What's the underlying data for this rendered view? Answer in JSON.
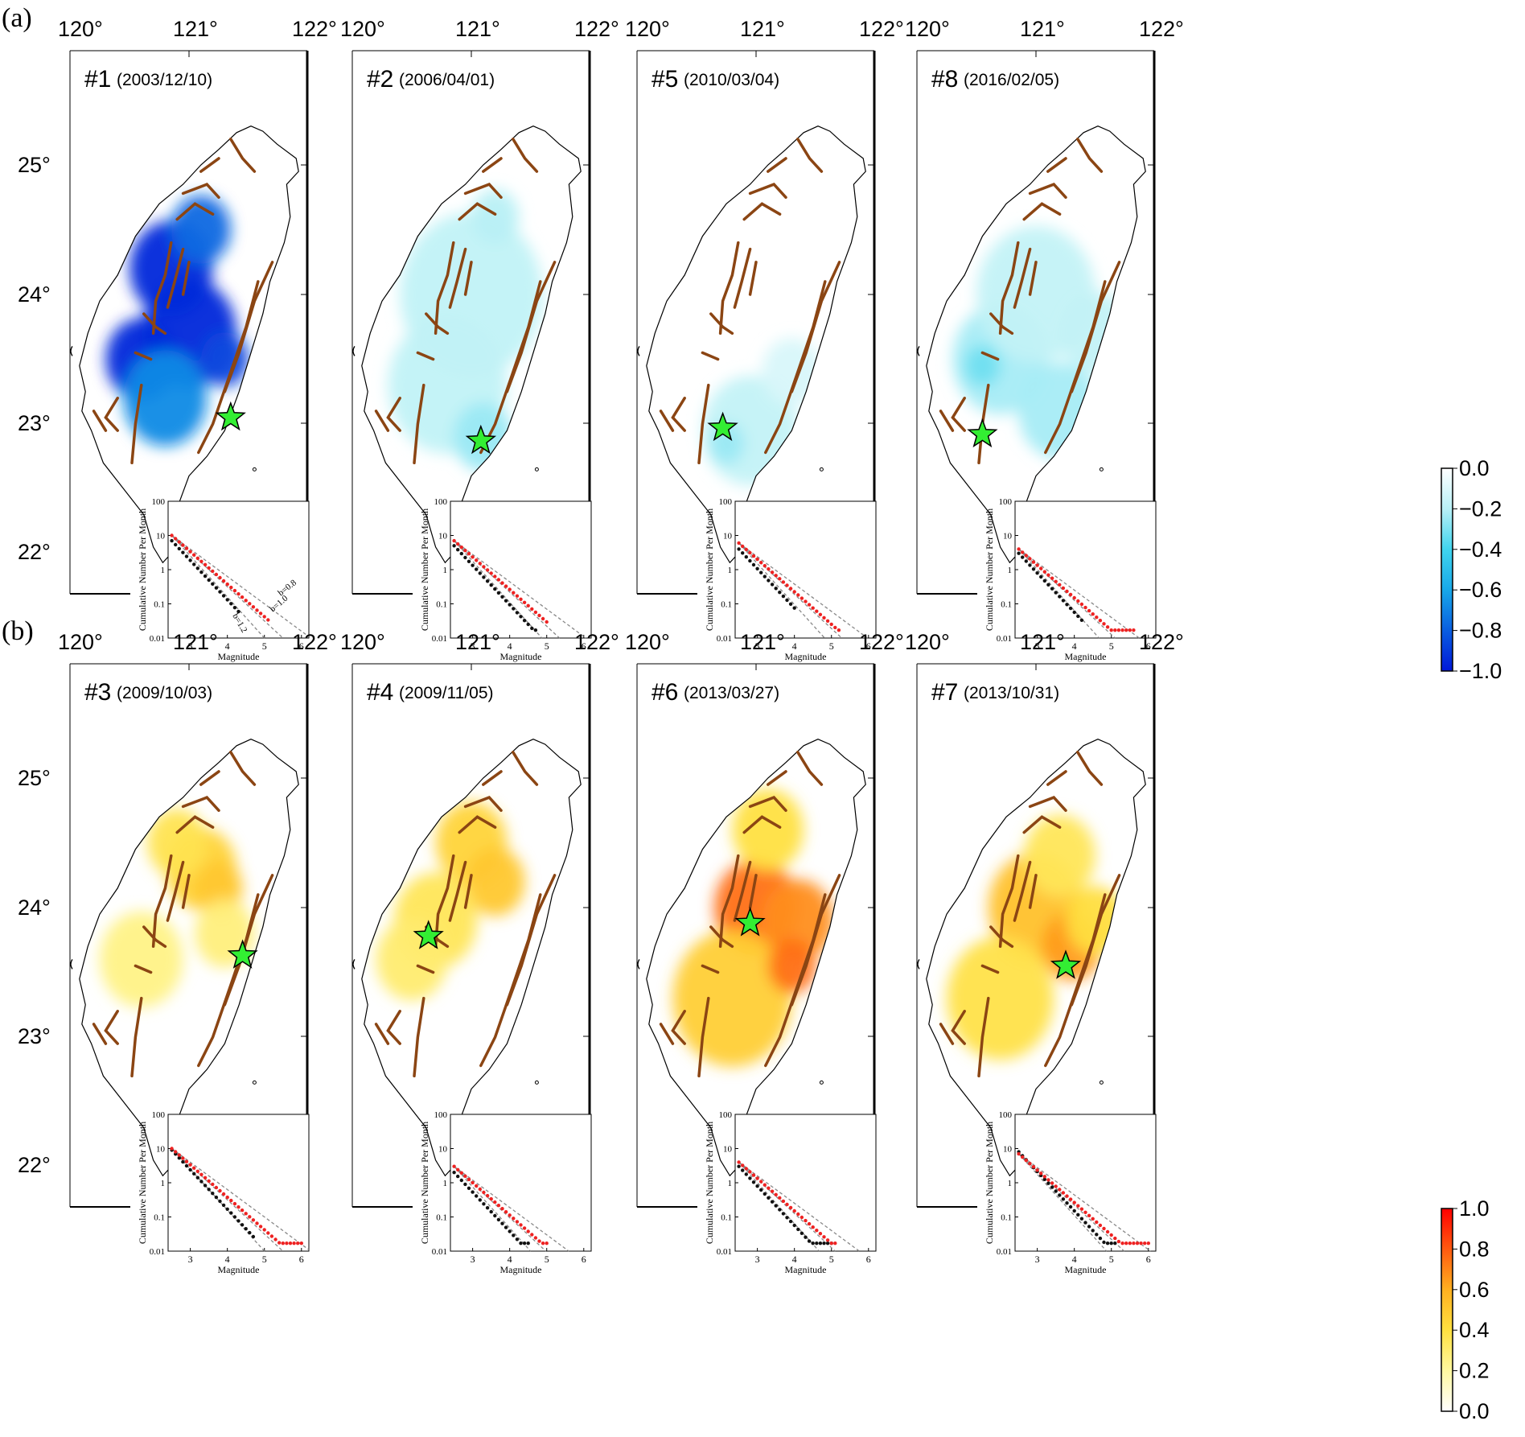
{
  "rows": [
    {
      "label": "(a)",
      "colorbar": {
        "ticks": [
          "0.0",
          "−0.2",
          "−0.4",
          "−0.6",
          "−0.8",
          "−1.0"
        ],
        "colors": [
          "#ffffff",
          "#b8f0f6",
          "#40d4ee",
          "#18a8e8",
          "#0a5ee0",
          "#0018d8"
        ]
      },
      "panels": [
        {
          "id": "#1",
          "date": "(2003/12/10)",
          "scheme": "blue",
          "intensity": 0.9,
          "star": {
            "lon": 121.35,
            "lat": 23.05
          },
          "inset": {
            "b_labels": [
              "b=0.8",
              "b=1.0",
              "b=1.2"
            ],
            "black_end": 4.3,
            "red_end": 5.1,
            "black_start": 7,
            "red_start": 10
          }
        },
        {
          "id": "#2",
          "date": "(2006/04/01)",
          "scheme": "blue",
          "intensity": 0.25,
          "star": {
            "lon": 121.08,
            "lat": 22.87
          },
          "inset": {
            "b_labels": [],
            "black_end": 4.7,
            "red_end": 5.0,
            "black_start": 5,
            "red_start": 7
          }
        },
        {
          "id": "#5",
          "date": "(2010/03/04)",
          "scheme": "blue",
          "intensity": 0.2,
          "star": {
            "lon": 120.72,
            "lat": 22.97
          },
          "inset": {
            "b_labels": [],
            "black_end": 4.0,
            "red_end": 5.2,
            "black_start": 4,
            "red_start": 6
          }
        },
        {
          "id": "#8",
          "date": "(2016/02/05)",
          "scheme": "blue",
          "intensity": 0.3,
          "star": {
            "lon": 120.55,
            "lat": 22.92
          },
          "inset": {
            "b_labels": [],
            "black_end": 4.2,
            "red_end": 5.6,
            "black_start": 3,
            "red_start": 4
          }
        }
      ]
    },
    {
      "label": "(b)",
      "colorbar": {
        "ticks": [
          "1.0",
          "0.8",
          "0.6",
          "0.4",
          "0.2",
          "0.0"
        ],
        "colors": [
          "#ff0000",
          "#ff5a10",
          "#ffb020",
          "#ffe040",
          "#fff8a0",
          "#ffffff"
        ]
      },
      "panels": [
        {
          "id": "#3",
          "date": "(2009/10/03)",
          "scheme": "red",
          "intensity": 0.45,
          "star": {
            "lon": 121.45,
            "lat": 23.63
          },
          "inset": {
            "b_labels": [],
            "black_end": 4.7,
            "red_end": 6.0,
            "black_start": 9,
            "red_start": 10
          }
        },
        {
          "id": "#4",
          "date": "(2009/11/05)",
          "scheme": "red",
          "intensity": 0.5,
          "star": {
            "lon": 120.64,
            "lat": 23.78
          },
          "inset": {
            "b_labels": [],
            "black_end": 4.5,
            "red_end": 5.0,
            "black_start": 2,
            "red_start": 3
          }
        },
        {
          "id": "#6",
          "date": "(2013/03/27)",
          "scheme": "red",
          "intensity": 0.7,
          "star": {
            "lon": 120.95,
            "lat": 23.88
          },
          "inset": {
            "b_labels": [],
            "black_end": 5.0,
            "red_end": 5.1,
            "black_start": 3,
            "red_start": 4
          }
        },
        {
          "id": "#7",
          "date": "(2013/10/31)",
          "scheme": "red",
          "intensity": 0.6,
          "star": {
            "lon": 121.25,
            "lat": 23.55
          },
          "inset": {
            "b_labels": [],
            "black_end": 5.1,
            "red_end": 6.0,
            "black_start": 8,
            "red_start": 7
          }
        }
      ]
    }
  ],
  "map": {
    "lon_ticks": [
      "120°",
      "121°",
      "122°"
    ],
    "lat_ticks": [
      "25°",
      "24°",
      "23°",
      "22°"
    ],
    "lon_values": [
      120,
      121,
      122
    ],
    "lat_values": [
      25,
      24,
      23,
      22
    ]
  },
  "inset_axes": {
    "ylabel": "Cumulative Number Per Month",
    "xlabel": "Magnitude",
    "y_ticks": [
      "100",
      "10",
      "1",
      "0.1",
      "0.01"
    ],
    "x_ticks": [
      "3",
      "4",
      "5",
      "6"
    ]
  },
  "colors": {
    "fault": "#8b4513",
    "star": "#33ee33",
    "coast": "#000000",
    "red_points": "#ee2222",
    "black_points": "#111111"
  }
}
